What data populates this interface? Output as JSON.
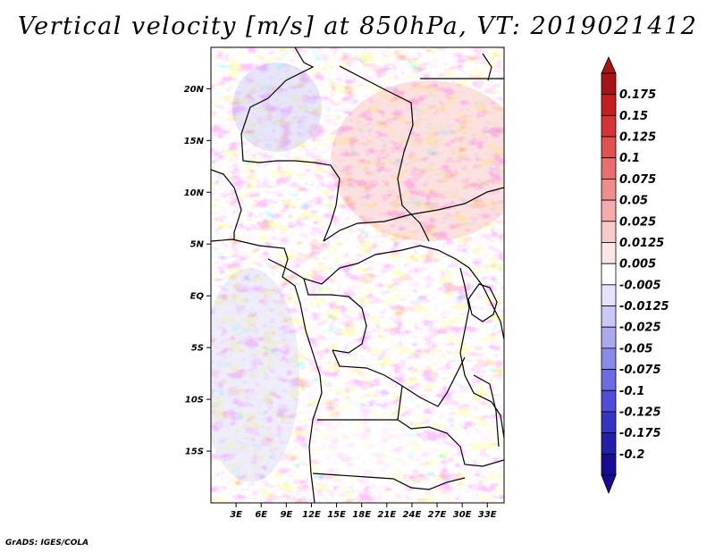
{
  "title": "Vertical velocity [m/s] at 850hPa, VT: 2019021412",
  "credit": "GrADS: IGES/COLA",
  "map": {
    "lon_range": [
      0,
      35
    ],
    "lat_range": [
      -20,
      24
    ],
    "lat_ticks": [
      {
        "value": 20,
        "label": "20N"
      },
      {
        "value": 15,
        "label": "15N"
      },
      {
        "value": 10,
        "label": "10N"
      },
      {
        "value": 5,
        "label": "5N"
      },
      {
        "value": 0,
        "label": "EQ"
      },
      {
        "value": -5,
        "label": "5S"
      },
      {
        "value": -10,
        "label": "10S"
      },
      {
        "value": -15,
        "label": "15S"
      }
    ],
    "lon_ticks": [
      {
        "value": 3,
        "label": "3E"
      },
      {
        "value": 6,
        "label": "6E"
      },
      {
        "value": 9,
        "label": "9E"
      },
      {
        "value": 12,
        "label": "12E"
      },
      {
        "value": 15,
        "label": "15E"
      },
      {
        "value": 18,
        "label": "18E"
      },
      {
        "value": 21,
        "label": "21E"
      },
      {
        "value": 24,
        "label": "24E"
      },
      {
        "value": 27,
        "label": "27E"
      },
      {
        "value": 30,
        "label": "30E"
      },
      {
        "value": 33,
        "label": "33E"
      }
    ]
  },
  "colorbar": {
    "labels": [
      "0.175",
      "0.15",
      "0.125",
      "0.1",
      "0.075",
      "0.05",
      "0.025",
      "0.0125",
      "0.005",
      "-0.005",
      "-0.0125",
      "-0.025",
      "-0.05",
      "-0.075",
      "-0.1",
      "-0.125",
      "-0.175",
      "-0.2"
    ],
    "colors": [
      "#a81414",
      "#c41e1e",
      "#d63434",
      "#e25050",
      "#ea6e6e",
      "#f08c8c",
      "#f5abab",
      "#f9caca",
      "#fde6e6",
      "#ffffff",
      "#e3e3fb",
      "#c9c9f6",
      "#a9a9f0",
      "#8a8aea",
      "#6c6ce2",
      "#4e4ed8",
      "#3434c6",
      "#2020a8",
      "#180c96"
    ]
  }
}
